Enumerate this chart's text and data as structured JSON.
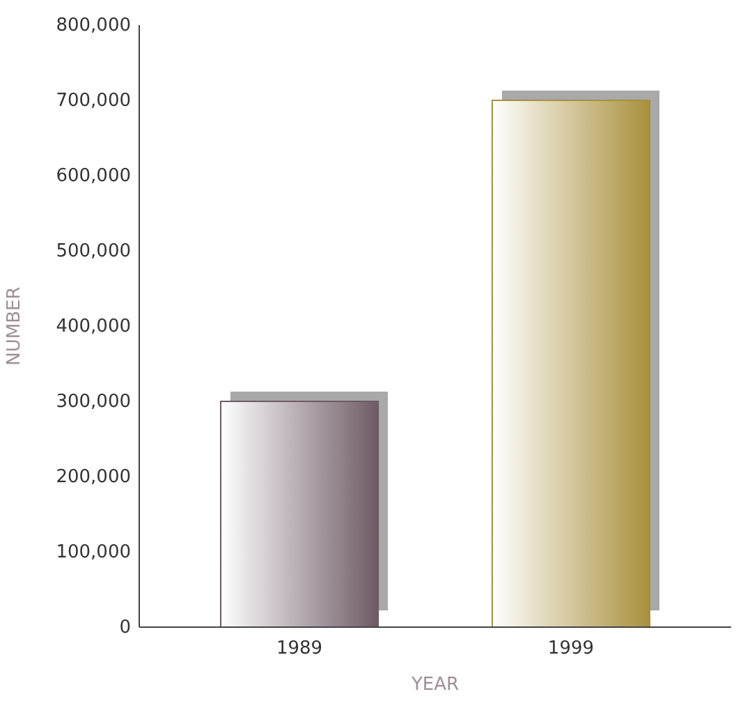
{
  "chart_data": {
    "type": "bar",
    "xlabel": "YEAR",
    "ylabel": "NUMBER",
    "categories": [
      "1989",
      "1999"
    ],
    "values": [
      300000,
      700000
    ],
    "colors": [
      "#6e5a66",
      "#a8903c"
    ],
    "ylim": [
      0,
      800000
    ],
    "yticks": [
      {
        "value": 0,
        "label": "0"
      },
      {
        "value": 100000,
        "label": "100,000"
      },
      {
        "value": 200000,
        "label": "200,000"
      },
      {
        "value": 300000,
        "label": "300,000"
      },
      {
        "value": 400000,
        "label": "400,000"
      },
      {
        "value": 500000,
        "label": "500,000"
      },
      {
        "value": 600000,
        "label": "600,000"
      },
      {
        "value": 700000,
        "label": "700,000"
      },
      {
        "value": 800000,
        "label": "800,000"
      }
    ],
    "grid": false
  }
}
